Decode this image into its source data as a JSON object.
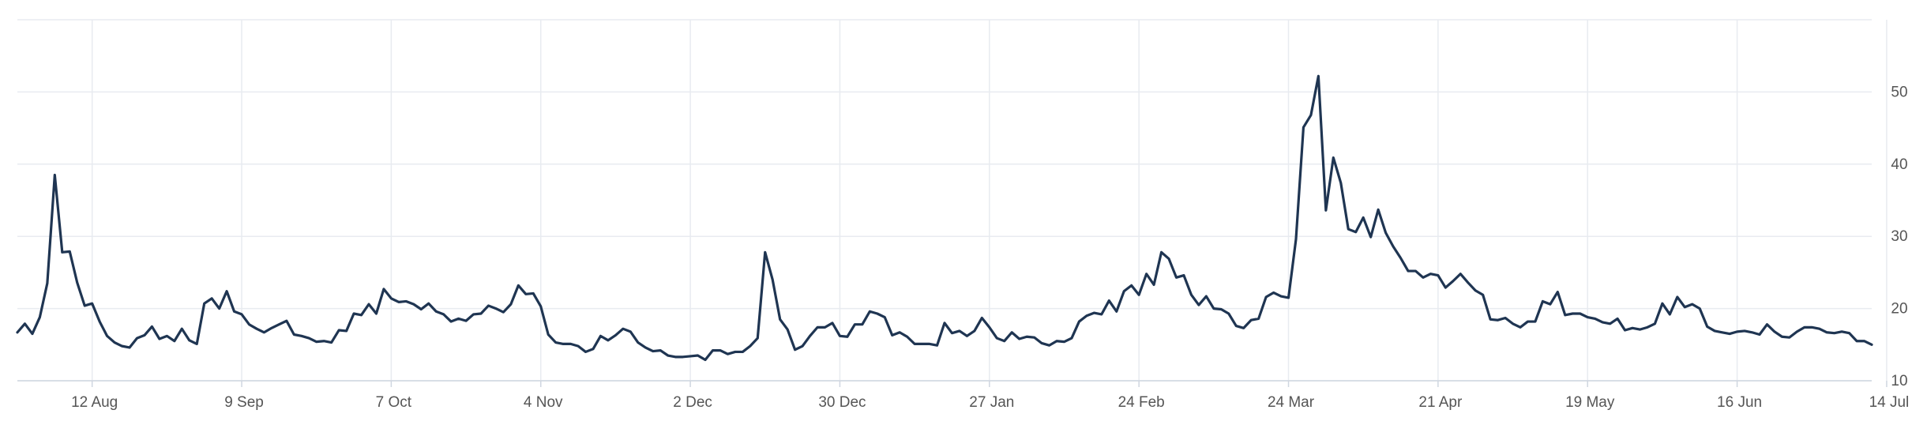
{
  "colors": {
    "line": "#1f3552",
    "grid": "#e8ebf0",
    "axis": "#cfd6e0",
    "tick_text": "#555555"
  },
  "chart_data": {
    "type": "line",
    "grid": true,
    "y_axis_side": "right",
    "ylim": [
      10,
      60
    ],
    "yticks": [
      "10",
      "20",
      "30",
      "40",
      "50"
    ],
    "xticks": [
      {
        "label": "12 Aug",
        "index": 10
      },
      {
        "label": "9 Sep",
        "index": 30
      },
      {
        "label": "7 Oct",
        "index": 50
      },
      {
        "label": "4 Nov",
        "index": 70
      },
      {
        "label": "2 Dec",
        "index": 90
      },
      {
        "label": "30 Dec",
        "index": 110
      },
      {
        "label": "27 Jan",
        "index": 130
      },
      {
        "label": "24 Feb",
        "index": 150
      },
      {
        "label": "24 Mar",
        "index": 170
      },
      {
        "label": "21 Apr",
        "index": 190
      },
      {
        "label": "19 May",
        "index": 210
      },
      {
        "label": "16 Jun",
        "index": 230
      },
      {
        "label": "14 Jul",
        "index": 250
      }
    ],
    "series": [
      {
        "values": [
          16.7,
          17.9,
          16.5,
          18.8,
          23.5,
          38.5,
          27.8,
          27.9,
          23.6,
          20.4,
          20.7,
          18.2,
          16.2,
          15.3,
          14.8,
          14.6,
          15.9,
          16.3,
          17.5,
          15.8,
          16.2,
          15.5,
          17.2,
          15.6,
          15.1,
          20.7,
          21.4,
          20.0,
          22.4,
          19.6,
          19.2,
          17.8,
          17.2,
          16.7,
          17.3,
          17.8,
          18.3,
          16.4,
          16.2,
          15.9,
          15.4,
          15.5,
          15.3,
          17.0,
          16.9,
          19.3,
          19.1,
          20.6,
          19.3,
          22.7,
          21.4,
          20.9,
          21.0,
          20.6,
          19.9,
          20.7,
          19.6,
          19.2,
          18.2,
          18.6,
          18.3,
          19.2,
          19.3,
          20.4,
          20.0,
          19.5,
          20.6,
          23.2,
          22.0,
          22.1,
          20.3,
          16.4,
          15.3,
          15.1,
          15.1,
          14.8,
          14.0,
          14.4,
          16.2,
          15.6,
          16.3,
          17.2,
          16.8,
          15.3,
          14.6,
          14.1,
          14.2,
          13.5,
          13.3,
          13.3,
          13.4,
          13.5,
          12.9,
          14.2,
          14.2,
          13.7,
          14.0,
          14.0,
          14.8,
          15.9,
          27.8,
          24.0,
          18.5,
          17.1,
          14.3,
          14.8,
          16.2,
          17.4,
          17.4,
          18.0,
          16.2,
          16.1,
          17.8,
          17.8,
          19.6,
          19.3,
          18.8,
          16.3,
          16.7,
          16.1,
          15.1,
          15.1,
          15.1,
          14.9,
          18.0,
          16.6,
          16.9,
          16.2,
          16.9,
          18.7,
          17.4,
          15.9,
          15.5,
          16.7,
          15.8,
          16.1,
          16.0,
          15.2,
          14.9,
          15.5,
          15.4,
          15.9,
          18.2,
          19.0,
          19.4,
          19.2,
          21.1,
          19.6,
          22.4,
          23.2,
          21.9,
          24.8,
          23.3,
          27.8,
          26.9,
          24.3,
          24.6,
          21.9,
          20.5,
          21.7,
          20.0,
          19.9,
          19.3,
          17.6,
          17.3,
          18.4,
          18.6,
          21.6,
          22.2,
          21.7,
          21.5,
          29.6,
          45.1,
          46.8,
          52.2,
          33.6,
          40.9,
          37.4,
          31.0,
          30.6,
          32.6,
          29.9,
          33.7,
          30.5,
          28.6,
          27.0,
          25.2,
          25.2,
          24.3,
          24.8,
          24.6,
          22.9,
          23.8,
          24.8,
          23.6,
          22.5,
          21.9,
          18.5,
          18.4,
          18.7,
          17.9,
          17.4,
          18.2,
          18.2,
          21.0,
          20.6,
          22.3,
          19.1,
          19.3,
          19.3,
          18.8,
          18.6,
          18.1,
          17.9,
          18.6,
          17.0,
          17.3,
          17.1,
          17.4,
          17.9,
          20.7,
          19.2,
          21.6,
          20.2,
          20.6,
          20.0,
          17.5,
          16.9,
          16.7,
          16.5,
          16.8,
          16.9,
          16.7,
          16.4,
          17.8,
          16.8,
          16.1,
          16.0,
          16.8,
          17.4,
          17.4,
          17.2,
          16.7,
          16.6,
          16.8,
          16.6,
          15.5,
          15.5,
          15.0
        ]
      }
    ]
  }
}
